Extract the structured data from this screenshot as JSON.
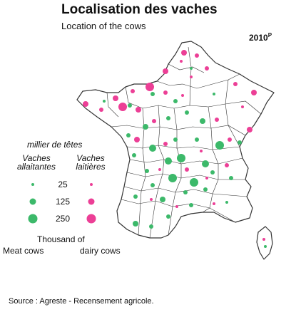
{
  "title": "Localisation des vaches",
  "subtitle": "Location of the cows",
  "year": {
    "main": "2010",
    "suffix": "P"
  },
  "legend": {
    "heading": "millier de têtes",
    "meat_col": {
      "line1": "Vaches",
      "line2": "allaitantes"
    },
    "dairy_col": {
      "line1": "Vaches",
      "line2": "laitières"
    },
    "sizes": [
      25,
      125,
      250
    ],
    "english_heading": "Thousand of",
    "english_meat": "Meat cows",
    "english_dairy": "dairy cows"
  },
  "colors": {
    "meat": "#3cb96a",
    "dairy": "#ec3f96",
    "border": "#333333"
  },
  "source": "Source : Agreste - Recensement agricole."
}
